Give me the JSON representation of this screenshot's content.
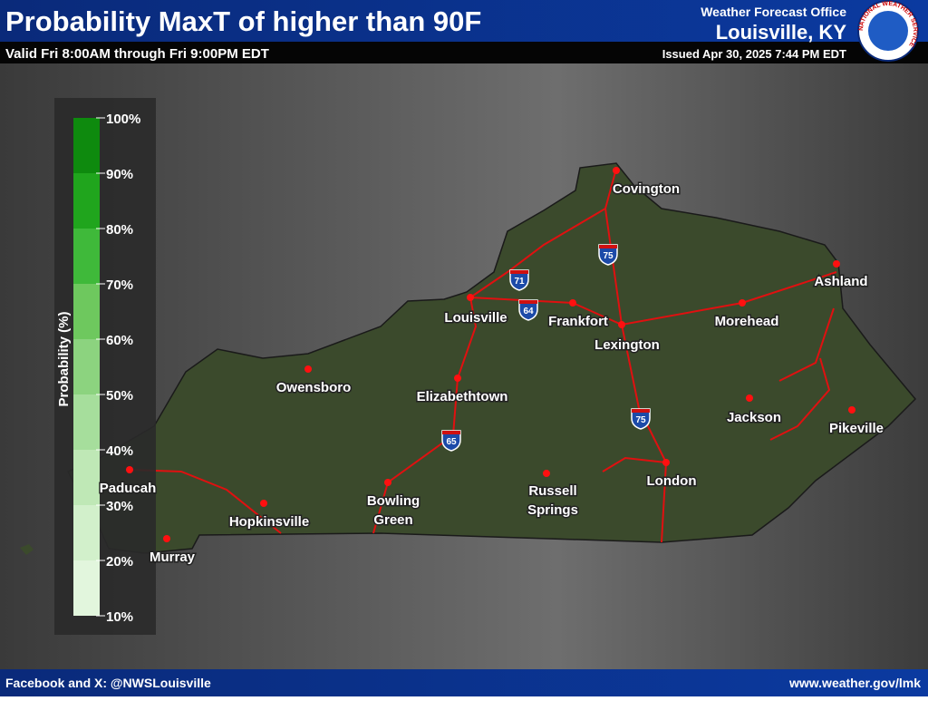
{
  "header": {
    "title": "Probability MaxT of higher than 90F",
    "subtitle": "Valid Fri 8:00AM through Fri 9:00PM EDT",
    "office": "Weather Forecast Office",
    "location": "Louisville, KY",
    "issued": "Issued Apr 30, 2025 7:44 PM EDT",
    "logo_text": "NATIONAL WEATHER SERVICE"
  },
  "legend": {
    "title": "Probability (%)",
    "ticks": [
      {
        "value": 10,
        "label": "10%"
      },
      {
        "value": 20,
        "label": "20%"
      },
      {
        "value": 30,
        "label": "30%"
      },
      {
        "value": 40,
        "label": "40%"
      },
      {
        "value": 50,
        "label": "50%"
      },
      {
        "value": 60,
        "label": "60%"
      },
      {
        "value": 70,
        "label": "70%"
      },
      {
        "value": 80,
        "label": "80%"
      },
      {
        "value": 90,
        "label": "90%"
      },
      {
        "value": 100,
        "label": "100%"
      }
    ],
    "colors": [
      "#e2f6dd",
      "#d2f0cb",
      "#bfe8b6",
      "#a6de9c",
      "#8cd37f",
      "#6ec85e",
      "#3fb93a",
      "#20a51d",
      "#0e8a0e"
    ]
  },
  "cities": [
    {
      "name": "Covington"
    },
    {
      "name": "Ashland"
    },
    {
      "name": "Louisville"
    },
    {
      "name": "Frankfort"
    },
    {
      "name": "Lexington"
    },
    {
      "name": "Morehead"
    },
    {
      "name": "Owensboro"
    },
    {
      "name": "Elizabethtown"
    },
    {
      "name": "Jackson"
    },
    {
      "name": "Pikeville"
    },
    {
      "name": "Paducah"
    },
    {
      "name": "Hopkinsville"
    },
    {
      "lines": [
        "Bowling",
        "Green"
      ]
    },
    {
      "lines": [
        "Russell",
        "Springs"
      ]
    },
    {
      "name": "London"
    },
    {
      "name": "Murray"
    }
  ],
  "interstates": [
    "71",
    "64",
    "75",
    "75",
    "65"
  ],
  "footer": {
    "social": "Facebook and X: @NWSLouisville",
    "url": "www.weather.gov/lmk"
  }
}
